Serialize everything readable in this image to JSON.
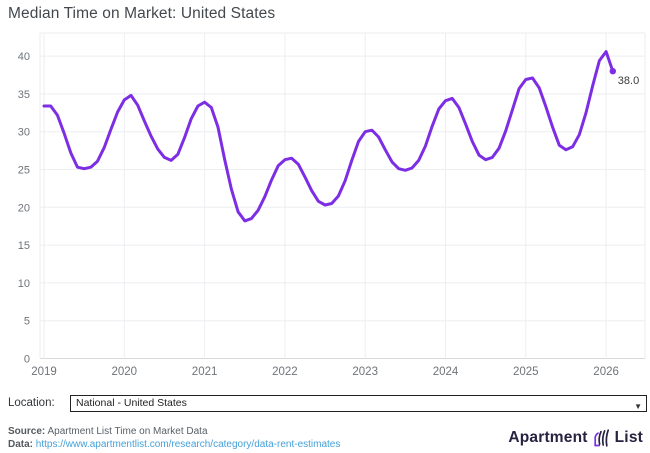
{
  "title": "Median Time on Market: United States",
  "chart_data": {
    "type": "line",
    "title": "Median Time on Market: United States",
    "xlabel": "",
    "ylabel": "",
    "x_tick_labels": [
      "2019",
      "2020",
      "2021",
      "2022",
      "2023",
      "2024",
      "2025",
      "2026"
    ],
    "y_ticks": [
      0,
      5,
      10,
      15,
      20,
      25,
      30,
      35,
      40
    ],
    "ylim": [
      0,
      43
    ],
    "grid": true,
    "legend": "none",
    "x_start": "2019-01",
    "x_frequency": "monthly",
    "series": [
      {
        "name": "Median time on market (days)",
        "color": "#7d2ee4",
        "values": [
          33.4,
          33.4,
          32.2,
          29.8,
          27.2,
          25.3,
          25.1,
          25.3,
          26.1,
          27.9,
          30.3,
          32.6,
          34.2,
          34.8,
          33.5,
          31.4,
          29.4,
          27.7,
          26.6,
          26.2,
          27.0,
          29.2,
          31.7,
          33.4,
          33.9,
          33.2,
          30.6,
          26.3,
          22.4,
          19.4,
          18.2,
          18.5,
          19.6,
          21.4,
          23.6,
          25.5,
          26.3,
          26.5,
          25.7,
          24.0,
          22.2,
          20.8,
          20.3,
          20.5,
          21.5,
          23.5,
          26.2,
          28.7,
          30.0,
          30.2,
          29.3,
          27.6,
          26.0,
          25.1,
          24.9,
          25.2,
          26.2,
          28.1,
          30.7,
          33.0,
          34.1,
          34.4,
          33.2,
          31.0,
          28.7,
          26.9,
          26.3,
          26.6,
          27.8,
          30.1,
          32.9,
          35.7,
          36.9,
          37.1,
          35.8,
          33.3,
          30.6,
          28.2,
          27.6,
          28.0,
          29.6,
          32.5,
          36.1,
          39.4,
          40.6,
          38.0
        ]
      }
    ],
    "end_label": "38.0"
  },
  "location": {
    "label": "Location:",
    "selected": "National - United States",
    "caret": "▼"
  },
  "footer": {
    "source_label": "Source:",
    "source_text": " Apartment List Time on Market Data",
    "data_label": "Data:",
    "data_url": "https://www.apartmentlist.com/research/category/data-rent-estimates"
  },
  "logo": {
    "left": "Apartment",
    "right": "List"
  },
  "colors": {
    "line": "#7d2ee4",
    "grid": "#eceef1",
    "axis_zero": "#d7dadd",
    "tick_text": "#6f7479",
    "link": "#44a1d9",
    "logo_text": "#262240"
  }
}
